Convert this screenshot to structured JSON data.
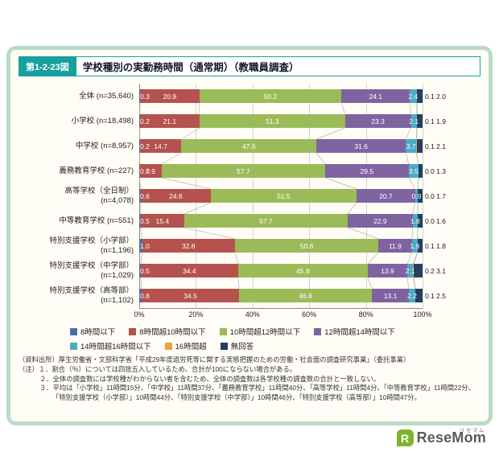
{
  "header": {
    "fig_label": "第1-2-23図",
    "title": "学校種別の実勤務時間（通常期）（教職員調査）"
  },
  "chart_data": {
    "type": "bar",
    "stacked": true,
    "orientation": "horizontal",
    "xlim": [
      0,
      100
    ],
    "x_ticks": [
      "0%",
      "20%",
      "40%",
      "60%",
      "80%",
      "100%"
    ],
    "grid": true,
    "legend_position": "bottom",
    "categories": [
      "全体 (n=35,640)",
      "小学校 (n=18,498)",
      "中学校 (n=8,957)",
      "義務教育学校 (n=227)",
      "高等学校（全日制）\n(n=4,078)",
      "中等教育学校 (n=551)",
      "特別支援学校（小学部）\n(n=1,196)",
      "特別支援学校（中学部）\n(n=1,029)",
      "特別支援学校（高等部）\n(n=1,102)"
    ],
    "series": [
      {
        "name": "8時間以下",
        "color": "#4a6fa8",
        "values": [
          0.3,
          0.2,
          0.2,
          0.0,
          0.6,
          0.5,
          1.0,
          0.5,
          0.8
        ]
      },
      {
        "name": "8時間超10時間以下",
        "color": "#b5524d",
        "values": [
          20.9,
          21.1,
          14.7,
          7.9,
          24.6,
          15.4,
          32.8,
          34.4,
          34.5
        ]
      },
      {
        "name": "10時間超12時間以下",
        "color": "#9bbb59",
        "values": [
          50.2,
          51.3,
          47.6,
          57.7,
          51.5,
          57.7,
          50.6,
          45.8,
          46.8
        ]
      },
      {
        "name": "12時間超14時間以下",
        "color": "#7f63a1",
        "values": [
          24.1,
          23.3,
          31.6,
          29.5,
          20.7,
          22.9,
          11.9,
          13.9,
          13.1
        ]
      },
      {
        "name": "14時間超16時間以下",
        "color": "#4aacc5",
        "values": [
          2.4,
          2.1,
          3.7,
          3.5,
          0.9,
          1.8,
          1.9,
          2.1,
          2.2
        ]
      },
      {
        "name": "16時間超",
        "color": "#e8a33a",
        "values": [
          0.1,
          0.1,
          0.1,
          0.0,
          0.0,
          0.0,
          0.1,
          0.2,
          0.1
        ]
      },
      {
        "name": "無回答",
        "color": "#243f60",
        "values": [
          2.0,
          1.9,
          2.1,
          1.3,
          1.7,
          1.6,
          1.8,
          3.1,
          2.5
        ]
      }
    ]
  },
  "footnotes": [
    "（資料出所）厚生労働省・文部科学省「平成29年度過労死等に関する実態把握のための労働・社会面の調査研究事業」（委託事業）",
    "（注）１．割合（％）については四捨五入しているため、合計が100にならない場合がある。",
    "２．全体の調査数には学校種がわからない者を含むため、全体の調査数は各学校種の調査数の合計と一致しない。",
    "３．平均は「小学校」11時間15分、「中学校」11時間37分、「義務教育学校」11時間40分、「高等学校」11時間4分、「中等教育学校」11時間22分、「特別支援学校（小学部）」10時間44分、「特別支援学校（中学部）」10時間46分、「特別支援学校（高等部）」10時間47分。"
  ],
  "logo": {
    "icon_letter": "R",
    "wordmark": "ReseMom",
    "kana": "リセマム"
  }
}
